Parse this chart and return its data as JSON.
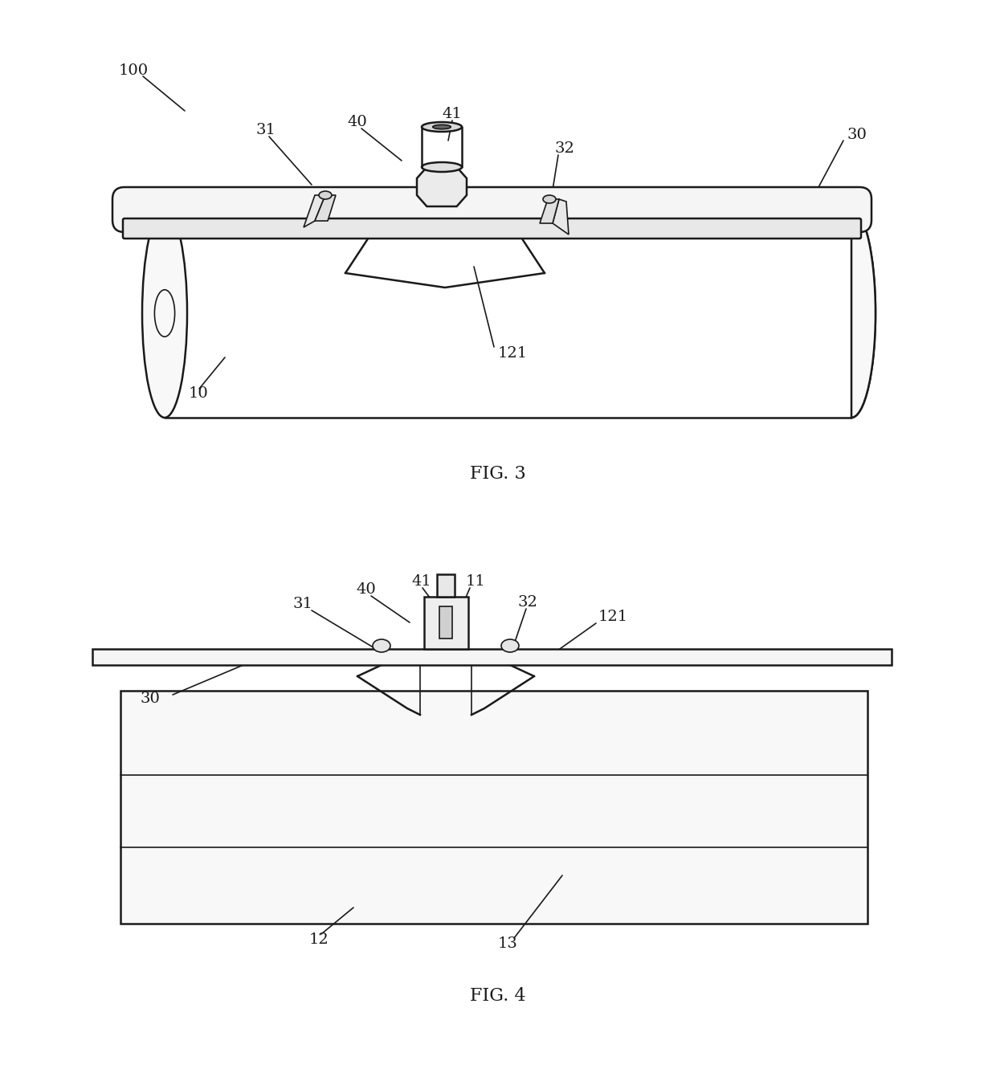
{
  "fig_width": 12.4,
  "fig_height": 13.31,
  "dpi": 100,
  "bg_color": "#ffffff",
  "line_color": "#1a1a1a",
  "lw": 1.8,
  "lw_thin": 1.2,
  "fig3_caption": "FIG. 3",
  "fig4_caption": "FIG. 4"
}
